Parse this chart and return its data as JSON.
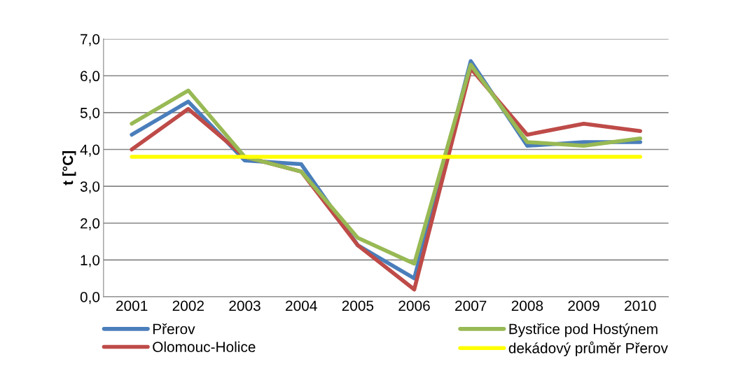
{
  "chart_data": {
    "type": "line",
    "ylabel": "t [°C]",
    "categories": [
      "2001",
      "2002",
      "2003",
      "2004",
      "2005",
      "2006",
      "2007",
      "2008",
      "2009",
      "2010"
    ],
    "series": [
      {
        "name": "Přerov",
        "color": "#4a7ebb",
        "values": [
          4.4,
          5.3,
          3.7,
          3.6,
          1.4,
          0.5,
          6.4,
          4.1,
          4.2,
          4.2
        ]
      },
      {
        "name": "Olomouc-Holice",
        "color": "#be4b48",
        "values": [
          4.0,
          5.1,
          3.8,
          3.4,
          1.4,
          0.2,
          6.2,
          4.4,
          4.7,
          4.5
        ]
      },
      {
        "name": "Bystřice pod Hostýnem",
        "color": "#98b954",
        "values": [
          4.7,
          5.6,
          3.8,
          3.4,
          1.6,
          0.9,
          6.3,
          4.2,
          4.1,
          4.3
        ]
      },
      {
        "name": "dekádový průměr Přerov",
        "color": "#ffff00",
        "values": [
          3.8,
          3.8,
          3.8,
          3.8,
          3.8,
          3.8,
          3.8,
          3.8,
          3.8,
          3.8
        ]
      }
    ],
    "ylim": [
      0,
      7
    ],
    "yticks": [
      {
        "value": 0,
        "label": "0,0"
      },
      {
        "value": 1,
        "label": "1,0"
      },
      {
        "value": 2,
        "label": "2,0"
      },
      {
        "value": 3,
        "label": "3,0"
      },
      {
        "value": 4,
        "label": "4,0"
      },
      {
        "value": 5,
        "label": "5,0"
      },
      {
        "value": 6,
        "label": "6,0"
      },
      {
        "value": 7,
        "label": "7,0"
      }
    ],
    "grid": "y",
    "legend": "bottom",
    "marker": "none",
    "line_style": "solid"
  }
}
